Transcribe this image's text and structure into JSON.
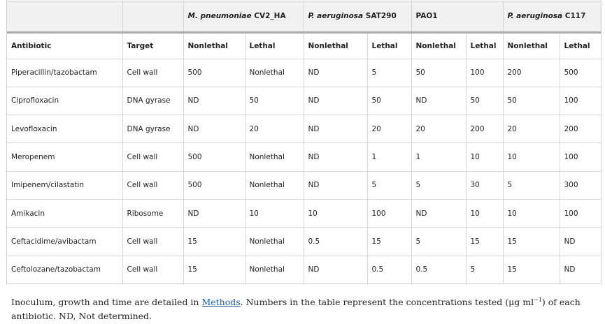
{
  "table": {
    "group_headers": [
      {
        "italic": "",
        "rest": ""
      },
      {
        "italic": "",
        "rest": ""
      },
      {
        "italic": "M. pneumoniae",
        "rest": " CV2_HA"
      },
      {
        "italic": "P. aeruginosa",
        "rest": " SAT290"
      },
      {
        "italic": "",
        "rest": "PAO1"
      },
      {
        "italic": "P. aeruginosa",
        "rest": " C117"
      }
    ],
    "columns": [
      "Antibiotic",
      "Target",
      "Nonlethal",
      "Lethal",
      "Nonlethal",
      "Lethal",
      "Nonlethal",
      "Lethal",
      "Nonlethal",
      "Lethal"
    ],
    "rows": [
      [
        "Piperacillin/tazobactam",
        "Cell wall",
        "500",
        "Nonlethal",
        "ND",
        "5",
        "50",
        "100",
        "200",
        "500"
      ],
      [
        "Ciprofloxacin",
        "DNA gyrase",
        "ND",
        "50",
        "ND",
        "50",
        "ND",
        "50",
        "50",
        "100"
      ],
      [
        "Levofloxacin",
        "DNA gyrase",
        "ND",
        "20",
        "ND",
        "20",
        "20",
        "200",
        "20",
        "200"
      ],
      [
        "Meropenem",
        "Cell wall",
        "500",
        "Nonlethal",
        "ND",
        "1",
        "1",
        "10",
        "10",
        "100"
      ],
      [
        "Imipenem/cilastatin",
        "Cell wall",
        "500",
        "Nonlethal",
        "ND",
        "5",
        "5",
        "30",
        "5",
        "300"
      ],
      [
        "Amikacin",
        "Ribosome",
        "ND",
        "10",
        "10",
        "100",
        "ND",
        "10",
        "10",
        "100"
      ],
      [
        "Ceftacidime/avibactam",
        "Cell wall",
        "15",
        "Nonlethal",
        "0.5",
        "15",
        "5",
        "15",
        "15",
        "ND"
      ],
      [
        "Ceftolozane/tazobactam",
        "Cell wall",
        "15",
        "Nonlethal",
        "ND",
        "0.5",
        "0.5",
        "5",
        "15",
        "ND"
      ]
    ]
  },
  "caption": {
    "before_link": "Inoculum, growth and time are detailed in ",
    "link": "Methods",
    "middle": ". Numbers in the table represent the concentrations tested (μg ml",
    "superscript": "−1",
    "after": ") of each antibiotic. ND, Not determined."
  }
}
